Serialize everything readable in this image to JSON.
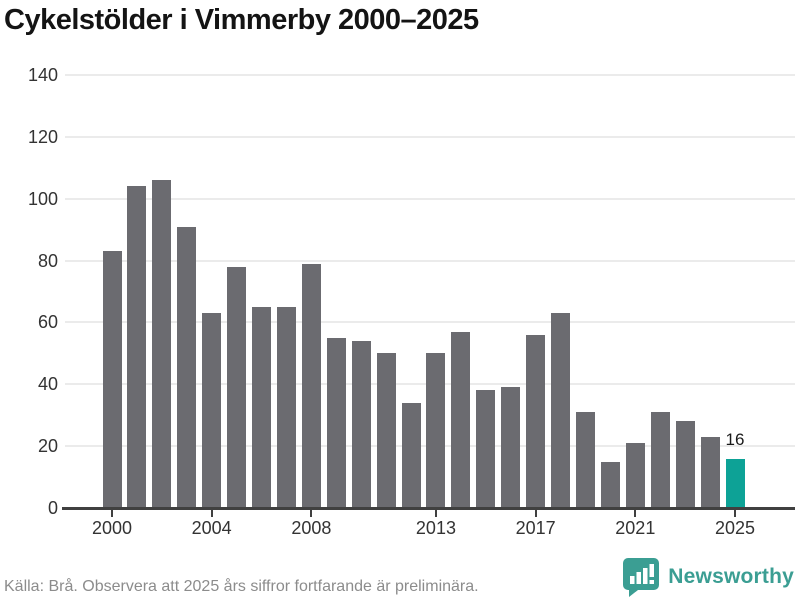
{
  "title": "Cykelstölder i Vimmerby 2000–2025",
  "footer": {
    "source_text": "Källa: Brå. Observera att 2025 års siffror fortfarande är preliminära."
  },
  "logo": {
    "name": "Newsworthy",
    "label": "Newsworthy",
    "color": "#3b9e93"
  },
  "colors": {
    "bar": "#6b6b70",
    "bar_highlight": "#0da296",
    "gridline": "#ebebeb",
    "axis": "#404040",
    "tick_text": "#333333"
  },
  "chart_data": {
    "type": "bar",
    "title": "Cykelstölder i Vimmerby 2000–2025",
    "xlabel": "",
    "ylabel": "",
    "ylim": [
      0,
      140
    ],
    "grid": true,
    "categories": [
      2000,
      2001,
      2002,
      2003,
      2004,
      2005,
      2006,
      2007,
      2008,
      2009,
      2010,
      2011,
      2012,
      2013,
      2014,
      2015,
      2016,
      2017,
      2018,
      2019,
      2020,
      2021,
      2022,
      2023,
      2024,
      2025
    ],
    "values": [
      83,
      104,
      106,
      91,
      63,
      78,
      65,
      65,
      79,
      55,
      54,
      50,
      34,
      50,
      57,
      38,
      39,
      56,
      63,
      31,
      15,
      21,
      31,
      28,
      23,
      16
    ],
    "highlight_category": 2025,
    "annotation": {
      "category": 2025,
      "text": "16"
    },
    "y_ticks": [
      0,
      20,
      40,
      60,
      80,
      100,
      120,
      140
    ],
    "x_ticks": [
      2000,
      2004,
      2008,
      2013,
      2017,
      2021,
      2025
    ],
    "source": "Källa: Brå. Observera att 2025 års siffror fortfarande är preliminära."
  }
}
